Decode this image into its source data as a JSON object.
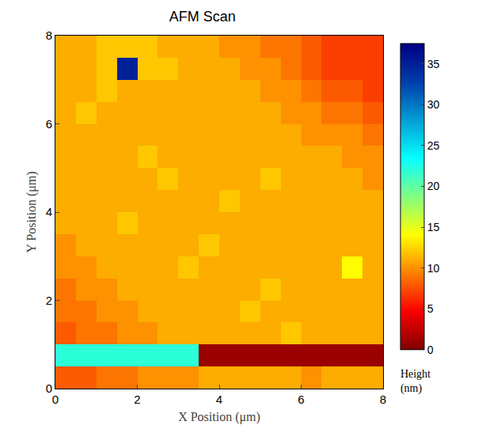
{
  "chart_data": {
    "type": "heatmap",
    "title": "AFM Scan",
    "x_label": "X Position (μm)",
    "y_label": "Y Position (μm)",
    "x": [
      0.25,
      0.75,
      1.25,
      1.75,
      2.25,
      2.75,
      3.25,
      3.75,
      4.25,
      4.75,
      5.25,
      5.75,
      6.25,
      6.75,
      7.25,
      7.75
    ],
    "y": [
      0.25,
      0.75,
      1.25,
      1.75,
      2.25,
      2.75,
      3.25,
      3.75,
      4.25,
      4.75,
      5.25,
      5.75,
      6.25,
      6.75,
      7.25,
      7.75
    ],
    "cells": [
      [
        8,
        8,
        9,
        9,
        10,
        10,
        10,
        11,
        11,
        11,
        11,
        11,
        10,
        11,
        11,
        11
      ],
      [
        22,
        22,
        22,
        22,
        22,
        22,
        22,
        1,
        1,
        1,
        1,
        1,
        1,
        1,
        1,
        1
      ],
      [
        8,
        9,
        9,
        10,
        10,
        11,
        11,
        11,
        11,
        11,
        11,
        12,
        11,
        11,
        11,
        11
      ],
      [
        9,
        9,
        10,
        10,
        11,
        11,
        11,
        11,
        11,
        12,
        11,
        11,
        11,
        11,
        11,
        11
      ],
      [
        9,
        10,
        10,
        11,
        11,
        11,
        11,
        11,
        11,
        11,
        12,
        11,
        11,
        11,
        11,
        11
      ],
      [
        10,
        10,
        11,
        11,
        11,
        11,
        12,
        11,
        11,
        11,
        11,
        11,
        11,
        11,
        14,
        11
      ],
      [
        10,
        11,
        11,
        11,
        11,
        11,
        11,
        12,
        11,
        11,
        11,
        11,
        11,
        11,
        11,
        11
      ],
      [
        11,
        11,
        11,
        12,
        11,
        11,
        11,
        11,
        11,
        11,
        11,
        11,
        11,
        11,
        11,
        11
      ],
      [
        11,
        11,
        11,
        11,
        11,
        11,
        11,
        11,
        12,
        11,
        11,
        11,
        11,
        11,
        11,
        11
      ],
      [
        11,
        11,
        11,
        11,
        11,
        12,
        11,
        11,
        11,
        11,
        12,
        11,
        11,
        11,
        11,
        10
      ],
      [
        11,
        11,
        11,
        11,
        12,
        11,
        11,
        11,
        11,
        11,
        11,
        11,
        11,
        11,
        10,
        10
      ],
      [
        11,
        11,
        11,
        11,
        11,
        11,
        11,
        11,
        11,
        11,
        11,
        11,
        10,
        10,
        10,
        9
      ],
      [
        11,
        12,
        11,
        11,
        11,
        11,
        11,
        11,
        11,
        11,
        11,
        10,
        10,
        9,
        9,
        8
      ],
      [
        11,
        11,
        12,
        11,
        11,
        11,
        11,
        11,
        11,
        11,
        10,
        10,
        9,
        8,
        8,
        7
      ],
      [
        11,
        11,
        12,
        35,
        12,
        12,
        11,
        11,
        11,
        10,
        10,
        9,
        8,
        7,
        7,
        7
      ],
      [
        11,
        11,
        12,
        12,
        12,
        11,
        11,
        11,
        10,
        10,
        9,
        9,
        8,
        7,
        7,
        7
      ]
    ],
    "xlim": [
      0,
      8
    ],
    "ylim": [
      0,
      8
    ],
    "xticks": [
      0,
      2,
      4,
      6,
      8
    ],
    "yticks": [
      0,
      2,
      4,
      6,
      8
    ],
    "color": "jet_reversed",
    "colorbar": {
      "label": "Height (nm)",
      "range": [
        0,
        37.5
      ],
      "ticks": [
        0,
        5,
        10,
        15,
        20,
        25,
        30,
        35
      ]
    }
  }
}
